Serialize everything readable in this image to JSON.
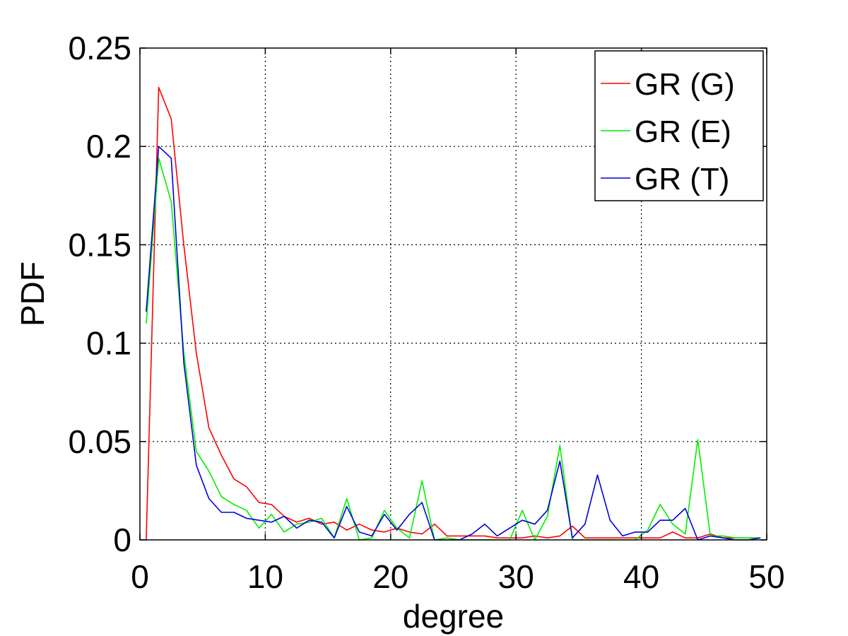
{
  "chart_data": {
    "type": "line",
    "title": "",
    "xlabel": "degree",
    "ylabel": "PDF",
    "xlim": [
      0,
      50
    ],
    "ylim": [
      0,
      0.25
    ],
    "xticks": [
      "0",
      "10",
      "20",
      "30",
      "40",
      "50"
    ],
    "yticks": [
      "0",
      "0.05",
      "0.1",
      "0.15",
      "0.2",
      "0.25"
    ],
    "grid": true,
    "legend_position": "top-right",
    "x": [
      0.5,
      1.5,
      2.5,
      3.5,
      4.5,
      5.5,
      6.5,
      7.5,
      8.5,
      9.5,
      10.5,
      11.5,
      12.5,
      13.5,
      14.5,
      15.5,
      16.5,
      17.5,
      18.5,
      19.5,
      20.5,
      21.5,
      22.5,
      23.5,
      24.5,
      25.5,
      26.5,
      27.5,
      28.5,
      29.5,
      30.5,
      31.5,
      32.5,
      33.5,
      34.5,
      35.5,
      36.5,
      37.5,
      38.5,
      39.5,
      40.5,
      41.5,
      42.5,
      43.5,
      44.5,
      45.5,
      46.5,
      47.5,
      48.5,
      49.5
    ],
    "series": [
      {
        "name": "GR (G)",
        "color": "#ff0000",
        "values": [
          0.0,
          0.23,
          0.214,
          0.15,
          0.095,
          0.057,
          0.043,
          0.031,
          0.027,
          0.019,
          0.018,
          0.012,
          0.009,
          0.011,
          0.008,
          0.009,
          0.005,
          0.008,
          0.005,
          0.004,
          0.006,
          0.004,
          0.003,
          0.008,
          0.002,
          0.002,
          0.002,
          0.002,
          0.001,
          0.001,
          0.001,
          0.002,
          0.001,
          0.002,
          0.007,
          0.001,
          0.001,
          0.001,
          0.001,
          0.001,
          0.001,
          0.001,
          0.004,
          0.001,
          0.001,
          0.003,
          0.001,
          0.001,
          0.001,
          0.001
        ]
      },
      {
        "name": "GR (E)",
        "color": "#00ee00",
        "values": [
          0.11,
          0.194,
          0.172,
          0.095,
          0.045,
          0.035,
          0.022,
          0.018,
          0.015,
          0.006,
          0.013,
          0.004,
          0.008,
          0.009,
          0.011,
          0.001,
          0.021,
          0.0,
          0.001,
          0.015,
          0.006,
          0.001,
          0.03,
          0.0,
          0.001,
          0.0,
          0.0,
          0.0,
          0.0,
          0.0,
          0.015,
          0.0,
          0.012,
          0.048,
          0.0,
          0.0,
          0.0,
          0.0,
          0.0,
          0.0,
          0.005,
          0.018,
          0.008,
          0.003,
          0.051,
          0.002,
          0.002,
          0.001,
          0.001,
          0.001
        ]
      },
      {
        "name": "GR (T)",
        "color": "#0000dd",
        "values": [
          0.116,
          0.2,
          0.194,
          0.09,
          0.038,
          0.021,
          0.014,
          0.014,
          0.011,
          0.01,
          0.009,
          0.012,
          0.006,
          0.01,
          0.009,
          0.001,
          0.017,
          0.004,
          0.002,
          0.013,
          0.005,
          0.013,
          0.019,
          0.0,
          0.0,
          0.0,
          0.003,
          0.008,
          0.002,
          0.006,
          0.01,
          0.008,
          0.015,
          0.04,
          0.001,
          0.008,
          0.033,
          0.01,
          0.002,
          0.004,
          0.004,
          0.01,
          0.01,
          0.016,
          0.0,
          0.002,
          0.001,
          0.0,
          0.0,
          0.001
        ]
      }
    ]
  }
}
